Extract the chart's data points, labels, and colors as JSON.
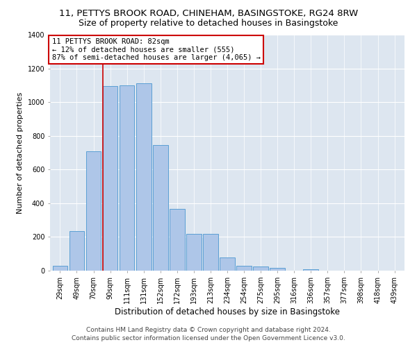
{
  "title1": "11, PETTYS BROOK ROAD, CHINEHAM, BASINGSTOKE, RG24 8RW",
  "title2": "Size of property relative to detached houses in Basingstoke",
  "xlabel": "Distribution of detached houses by size in Basingstoke",
  "ylabel": "Number of detached properties",
  "categories": [
    "29sqm",
    "49sqm",
    "70sqm",
    "90sqm",
    "111sqm",
    "131sqm",
    "152sqm",
    "172sqm",
    "193sqm",
    "213sqm",
    "234sqm",
    "254sqm",
    "275sqm",
    "295sqm",
    "316sqm",
    "336sqm",
    "357sqm",
    "377sqm",
    "398sqm",
    "418sqm",
    "439sqm"
  ],
  "values": [
    30,
    235,
    710,
    1095,
    1100,
    1110,
    745,
    365,
    220,
    220,
    80,
    30,
    25,
    18,
    0,
    10,
    0,
    0,
    0,
    0,
    0
  ],
  "bar_color": "#aec6e8",
  "bar_edge_color": "#5a9fd4",
  "vline_pos": 2.57,
  "annotation_text": "11 PETTYS BROOK ROAD: 82sqm\n← 12% of detached houses are smaller (555)\n87% of semi-detached houses are larger (4,065) →",
  "annotation_box_color": "#ffffff",
  "annotation_box_edge": "#cc0000",
  "vline_color": "#cc0000",
  "ylim": [
    0,
    1400
  ],
  "yticks": [
    0,
    200,
    400,
    600,
    800,
    1000,
    1200,
    1400
  ],
  "bg_color": "#dde6f0",
  "footer1": "Contains HM Land Registry data © Crown copyright and database right 2024.",
  "footer2": "Contains public sector information licensed under the Open Government Licence v3.0.",
  "title1_fontsize": 9.5,
  "title2_fontsize": 9,
  "xlabel_fontsize": 8.5,
  "ylabel_fontsize": 8,
  "tick_fontsize": 7,
  "annotation_fontsize": 7.5,
  "footer_fontsize": 6.5
}
